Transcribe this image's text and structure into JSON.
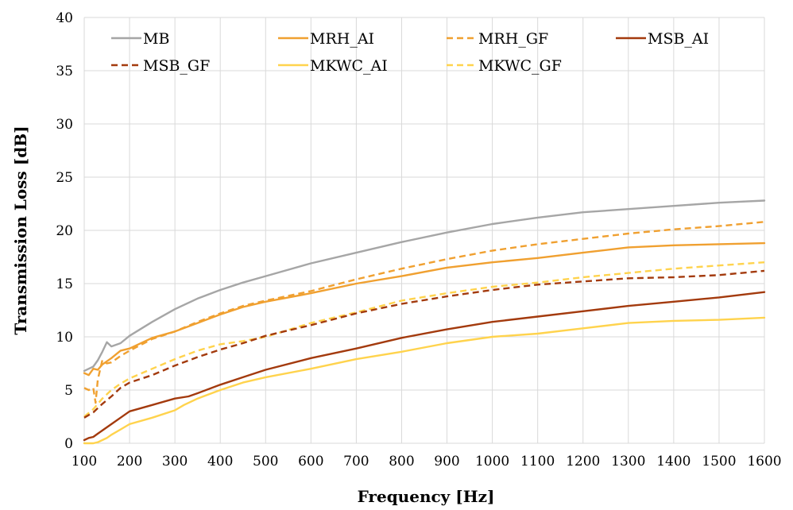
{
  "chart_data": {
    "type": "line",
    "title": "",
    "xlabel": "Frequency [Hz]",
    "ylabel": "Transmission Loss [dB]",
    "xlim": [
      100,
      1600
    ],
    "ylim": [
      0,
      40
    ],
    "x_ticks": [
      100,
      200,
      300,
      400,
      500,
      600,
      700,
      800,
      900,
      1000,
      1100,
      1200,
      1300,
      1400,
      1500,
      1600
    ],
    "y_ticks": [
      0,
      5,
      10,
      15,
      20,
      25,
      30,
      35,
      40
    ],
    "grid": "vertical and horizontal",
    "legend_position": "top",
    "series": [
      {
        "name": "MB",
        "color": "#a6a6a6",
        "dash": "solid",
        "x": [
          100,
          110,
          120,
          130,
          140,
          150,
          160,
          180,
          200,
          250,
          300,
          350,
          400,
          450,
          500,
          600,
          700,
          800,
          900,
          1000,
          1100,
          1200,
          1300,
          1400,
          1500,
          1600
        ],
        "y": [
          6.8,
          7.0,
          7.2,
          7.8,
          8.6,
          9.5,
          9.1,
          9.4,
          10.1,
          11.4,
          12.6,
          13.6,
          14.4,
          15.1,
          15.7,
          16.9,
          17.9,
          18.9,
          19.8,
          20.6,
          21.2,
          21.7,
          22.0,
          22.3,
          22.6,
          22.8
        ]
      },
      {
        "name": "MRH_AI",
        "color": "#f0a030",
        "dash": "solid",
        "x": [
          100,
          110,
          120,
          130,
          140,
          160,
          180,
          200,
          250,
          300,
          350,
          400,
          450,
          500,
          600,
          700,
          800,
          900,
          1000,
          1100,
          1200,
          1300,
          1400,
          1500,
          1600
        ],
        "y": [
          6.6,
          6.4,
          7.0,
          6.9,
          7.4,
          8.0,
          8.7,
          8.9,
          9.9,
          10.5,
          11.3,
          12.1,
          12.8,
          13.3,
          14.1,
          15.0,
          15.7,
          16.5,
          17.0,
          17.4,
          17.9,
          18.4,
          18.6,
          18.7,
          18.8
        ]
      },
      {
        "name": "MRH_GF",
        "color": "#f0a030",
        "dash": "dashed",
        "x": [
          100,
          110,
          120,
          125,
          130,
          140,
          150,
          160,
          180,
          200,
          250,
          300,
          350,
          400,
          450,
          500,
          600,
          700,
          800,
          900,
          1000,
          1100,
          1200,
          1300,
          1400,
          1500,
          1600
        ],
        "y": [
          5.2,
          5.0,
          5.2,
          3.8,
          6.0,
          7.8,
          7.5,
          7.6,
          8.2,
          8.7,
          9.8,
          10.5,
          11.4,
          12.2,
          12.9,
          13.4,
          14.3,
          15.4,
          16.4,
          17.3,
          18.1,
          18.7,
          19.2,
          19.7,
          20.1,
          20.4,
          20.8
        ]
      },
      {
        "name": "MSB_AI",
        "color": "#a33a0d",
        "dash": "solid",
        "x": [
          100,
          110,
          120,
          130,
          140,
          150,
          160,
          180,
          200,
          250,
          300,
          330,
          350,
          400,
          450,
          500,
          600,
          700,
          800,
          900,
          1000,
          1100,
          1200,
          1300,
          1400,
          1500,
          1600
        ],
        "y": [
          0.3,
          0.5,
          0.6,
          0.9,
          1.2,
          1.5,
          1.8,
          2.4,
          3.0,
          3.6,
          4.2,
          4.4,
          4.7,
          5.5,
          6.2,
          6.9,
          8.0,
          8.9,
          9.9,
          10.7,
          11.4,
          11.9,
          12.4,
          12.9,
          13.3,
          13.7,
          14.2
        ]
      },
      {
        "name": "MSB_GF",
        "color": "#a33a0d",
        "dash": "dashed",
        "x": [
          100,
          120,
          140,
          160,
          180,
          200,
          250,
          300,
          350,
          400,
          450,
          500,
          600,
          700,
          800,
          900,
          1000,
          1100,
          1200,
          1300,
          1400,
          1500,
          1600
        ],
        "y": [
          2.4,
          2.9,
          3.7,
          4.4,
          5.2,
          5.7,
          6.4,
          7.3,
          8.1,
          8.8,
          9.4,
          10.1,
          11.1,
          12.2,
          13.1,
          13.8,
          14.4,
          14.9,
          15.2,
          15.5,
          15.6,
          15.8,
          16.2
        ]
      },
      {
        "name": "MKWC_AI",
        "color": "#ffd34d",
        "dash": "solid",
        "x": [
          100,
          110,
          120,
          130,
          140,
          150,
          160,
          180,
          200,
          250,
          300,
          320,
          350,
          400,
          450,
          500,
          600,
          700,
          800,
          900,
          1000,
          1100,
          1200,
          1300,
          1400,
          1500,
          1600
        ],
        "y": [
          0.0,
          0.0,
          0.0,
          0.1,
          0.3,
          0.5,
          0.8,
          1.3,
          1.8,
          2.4,
          3.1,
          3.6,
          4.2,
          5.0,
          5.7,
          6.2,
          7.0,
          7.9,
          8.6,
          9.4,
          10.0,
          10.3,
          10.8,
          11.3,
          11.5,
          11.6,
          11.8
        ]
      },
      {
        "name": "MKWC_GF",
        "color": "#ffd34d",
        "dash": "dashed",
        "x": [
          100,
          120,
          140,
          160,
          180,
          200,
          250,
          300,
          350,
          400,
          450,
          500,
          600,
          700,
          800,
          900,
          1000,
          1100,
          1200,
          1300,
          1400,
          1500,
          1600
        ],
        "y": [
          2.5,
          3.2,
          4.2,
          5.0,
          5.6,
          6.1,
          7.0,
          7.9,
          8.7,
          9.3,
          9.6,
          10.0,
          11.3,
          12.3,
          13.4,
          14.1,
          14.7,
          15.1,
          15.6,
          16.0,
          16.4,
          16.7,
          17.0
        ]
      }
    ]
  }
}
